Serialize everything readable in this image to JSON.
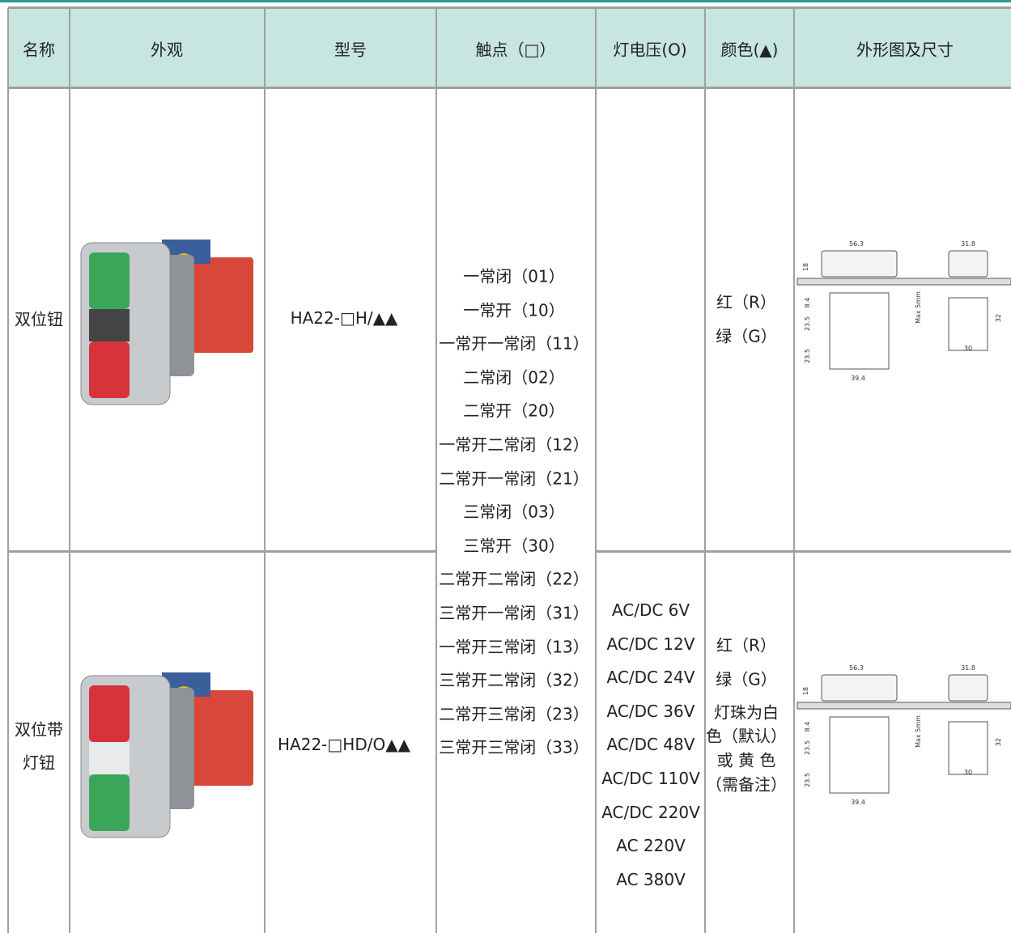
{
  "header": {
    "columns": [
      "名称",
      "外观",
      "型号",
      "触点（□）",
      "灯电压(O)",
      "颜色(▲)",
      "外形图及尺寸"
    ]
  },
  "table": {
    "contacts": [
      "一常闭（01）",
      "一常开（10）",
      "一常开一常闭（11）",
      "二常闭（02）",
      "二常开（20）",
      "一常开二常闭（12）",
      "二常开一常闭（21）",
      "三常闭（03）",
      "三常开（30）",
      "二常开二常闭（22）",
      "三常开一常闭（31）",
      "一常开三常闭（13）",
      "三常开二常闭（32）",
      "二常开三常闭（23）",
      "三常开三常闭（33）"
    ],
    "rows": [
      {
        "name": [
          "双位钮"
        ],
        "model": "HA22-□H/▲▲",
        "voltages": [],
        "colors": [
          "红（R）",
          "绿（G）"
        ],
        "drawing": [
          "56.3",
          "31.8",
          "18",
          "8.4",
          "23.5",
          "23.5",
          "39.4",
          "Max 5mm",
          "32",
          "30"
        ]
      },
      {
        "name": [
          "双位带",
          "灯钮"
        ],
        "model": "HA22-□HD/O▲▲",
        "voltages": [
          "AC/DC 6V",
          "AC/DC 12V",
          "AC/DC 24V",
          "AC/DC 36V",
          "AC/DC 48V",
          "AC/DC 110V",
          "AC/DC 220V",
          "AC 220V",
          "AC 380V"
        ],
        "colors": [
          "红（R）",
          "绿（G）",
          "灯珠为白",
          "色（默认）",
          "或 黄 色",
          "（需备注）"
        ],
        "drawing": [
          "56.3",
          "31.8",
          "18",
          "8.4",
          "23.5",
          "23.5",
          "39.4",
          "Max 5mm",
          "32",
          "30"
        ]
      }
    ]
  }
}
